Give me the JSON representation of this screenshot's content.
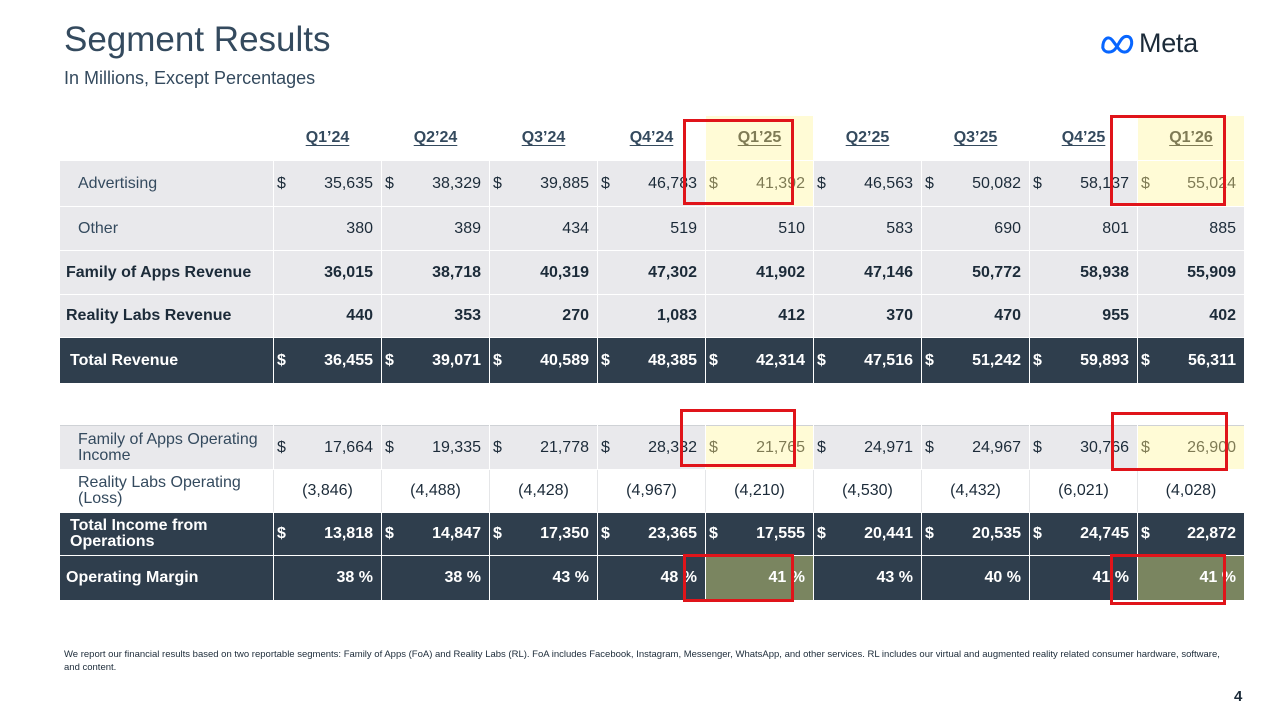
{
  "title": "Segment Results",
  "subtitle": "In Millions, Except Percentages",
  "logo_text": "Meta",
  "quarters": [
    "Q1’24",
    "Q2’24",
    "Q3’24",
    "Q4’24",
    "Q1’25",
    "Q2’25",
    "Q3’25",
    "Q4’25",
    "Q1’26"
  ],
  "currency_symbol": "$",
  "revenue_rows": [
    {
      "label": "Advertising",
      "values": [
        "35,635",
        "38,329",
        "39,885",
        "46,783",
        "41,392",
        "46,563",
        "50,082",
        "58,137",
        "55,024"
      ]
    },
    {
      "label": "Other",
      "values": [
        "380",
        "389",
        "434",
        "519",
        "510",
        "583",
        "690",
        "801",
        "885"
      ]
    },
    {
      "label": "Family of Apps Revenue",
      "values": [
        "36,015",
        "38,718",
        "40,319",
        "47,302",
        "41,902",
        "47,146",
        "50,772",
        "58,938",
        "55,909"
      ]
    },
    {
      "label": "Reality Labs Revenue",
      "values": [
        "440",
        "353",
        "270",
        "1,083",
        "412",
        "370",
        "470",
        "955",
        "402"
      ]
    },
    {
      "label": "Total Revenue",
      "values": [
        "36,455",
        "39,071",
        "40,589",
        "48,385",
        "42,314",
        "47,516",
        "51,242",
        "59,893",
        "56,311"
      ]
    }
  ],
  "income_rows": [
    {
      "label": "Family of Apps Operating Income",
      "values": [
        "17,664",
        "19,335",
        "21,778",
        "28,332",
        "21,765",
        "24,971",
        "24,967",
        "30,766",
        "26,900"
      ]
    },
    {
      "label": "Reality Labs Operating (Loss)",
      "values": [
        "(3,846)",
        "(4,488)",
        "(4,428)",
        "(4,967)",
        "(4,210)",
        "(4,530)",
        "(4,432)",
        "(6,021)",
        "(4,028)"
      ]
    },
    {
      "label": "Total Income from Operations",
      "values": [
        "13,818",
        "14,847",
        "17,350",
        "23,365",
        "17,555",
        "20,441",
        "20,535",
        "24,745",
        "22,872"
      ]
    },
    {
      "label": "Operating Margin",
      "values": [
        "38 %",
        "38 %",
        "43 %",
        "48 %",
        "41 %",
        "43 %",
        "40 %",
        "41 %",
        "41 %"
      ]
    }
  ],
  "colors": {
    "highlight_yellow": "#fffbd6",
    "highlight_green": "#7a8560",
    "highlight_border": "#e0141a",
    "dark_row": "#2f3e4d"
  },
  "footnote": "We report our financial results based on two reportable segments: Family of Apps (FoA) and Reality Labs (RL).  FoA includes Facebook, Instagram, Messenger, WhatsApp, and other services. RL includes our virtual and augmented reality related consumer hardware, software, and content.",
  "page_number": "4"
}
